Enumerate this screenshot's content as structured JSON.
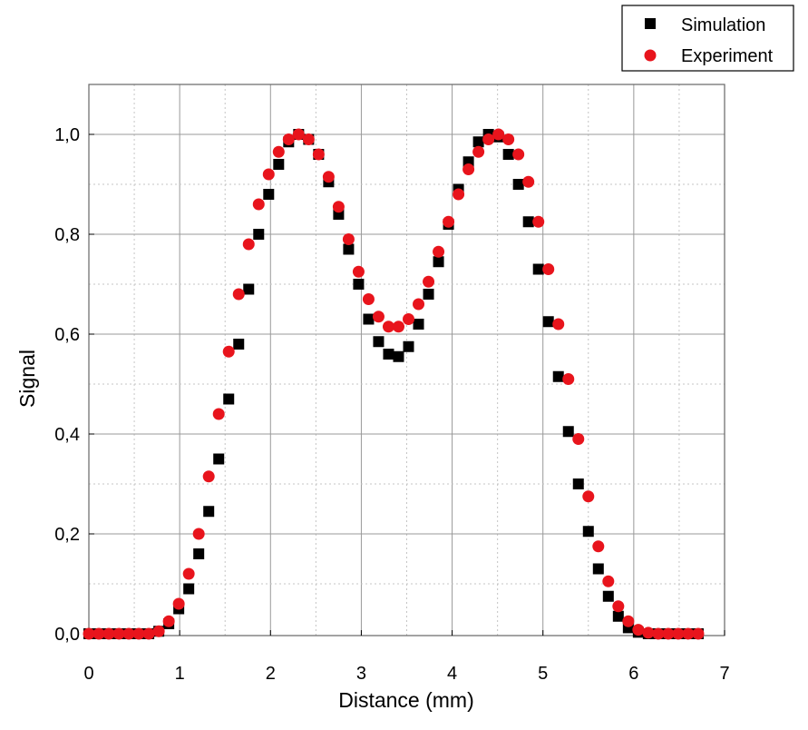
{
  "chart_data": {
    "type": "scatter",
    "xlabel": "Distance (mm)",
    "ylabel": "Signal",
    "xlim": [
      0,
      7
    ],
    "ylim": [
      0,
      1.1
    ],
    "x_ticks": [
      0,
      1,
      2,
      3,
      4,
      5,
      6,
      7
    ],
    "x_tick_labels": [
      "0",
      "1",
      "2",
      "3",
      "4",
      "5",
      "6",
      "7"
    ],
    "y_ticks": [
      0,
      0.2,
      0.4,
      0.6,
      0.8,
      1.0
    ],
    "y_tick_labels": [
      "0,0",
      "0,2",
      "0,4",
      "0,6",
      "0,8",
      "1,0"
    ],
    "grid": "dotted minor and solid major",
    "legend_placement": "top-right, outside plot",
    "series": [
      {
        "name": "Simulation",
        "marker": "square",
        "color": "#000000",
        "x": [
          0.0,
          0.11,
          0.22,
          0.33,
          0.44,
          0.55,
          0.66,
          0.77,
          0.88,
          0.99,
          1.1,
          1.21,
          1.32,
          1.43,
          1.54,
          1.65,
          1.76,
          1.87,
          1.98,
          2.09,
          2.2,
          2.31,
          2.42,
          2.53,
          2.64,
          2.75,
          2.86,
          2.97,
          3.08,
          3.19,
          3.3,
          3.41,
          3.52,
          3.63,
          3.74,
          3.85,
          3.96,
          4.07,
          4.18,
          4.29,
          4.4,
          4.51,
          4.62,
          4.73,
          4.84,
          4.95,
          5.06,
          5.17,
          5.28,
          5.39,
          5.5,
          5.61,
          5.72,
          5.83,
          5.94,
          6.05,
          6.16,
          6.27,
          6.38,
          6.49,
          6.6,
          6.71
        ],
        "y": [
          0.0,
          0.0,
          0.0,
          0.0,
          0.0,
          0.0,
          0.0,
          0.005,
          0.02,
          0.05,
          0.09,
          0.16,
          0.245,
          0.35,
          0.47,
          0.58,
          0.69,
          0.8,
          0.88,
          0.94,
          0.985,
          1.0,
          0.99,
          0.96,
          0.905,
          0.84,
          0.77,
          0.7,
          0.63,
          0.585,
          0.56,
          0.555,
          0.575,
          0.62,
          0.68,
          0.745,
          0.82,
          0.89,
          0.945,
          0.985,
          1.0,
          0.995,
          0.96,
          0.9,
          0.825,
          0.73,
          0.625,
          0.515,
          0.405,
          0.3,
          0.205,
          0.13,
          0.075,
          0.035,
          0.012,
          0.003,
          0.0,
          0.0,
          0.0,
          0.0,
          0.0,
          0.0
        ]
      },
      {
        "name": "Experiment",
        "marker": "circle",
        "color": "#e8141c",
        "x": [
          0.0,
          0.11,
          0.22,
          0.33,
          0.44,
          0.55,
          0.66,
          0.77,
          0.88,
          0.99,
          1.1,
          1.21,
          1.32,
          1.43,
          1.54,
          1.65,
          1.76,
          1.87,
          1.98,
          2.09,
          2.2,
          2.31,
          2.42,
          2.53,
          2.64,
          2.75,
          2.86,
          2.97,
          3.08,
          3.19,
          3.3,
          3.41,
          3.52,
          3.63,
          3.74,
          3.85,
          3.96,
          4.07,
          4.18,
          4.29,
          4.4,
          4.51,
          4.62,
          4.73,
          4.84,
          4.95,
          5.06,
          5.17,
          5.28,
          5.39,
          5.5,
          5.61,
          5.72,
          5.83,
          5.94,
          6.05,
          6.16,
          6.27,
          6.38,
          6.49,
          6.6,
          6.71
        ],
        "y": [
          0.0,
          0.0,
          0.0,
          0.0,
          0.0,
          0.0,
          0.0,
          0.005,
          0.025,
          0.06,
          0.12,
          0.2,
          0.315,
          0.44,
          0.565,
          0.68,
          0.78,
          0.86,
          0.92,
          0.965,
          0.99,
          1.0,
          0.99,
          0.96,
          0.915,
          0.855,
          0.79,
          0.725,
          0.67,
          0.635,
          0.615,
          0.615,
          0.63,
          0.66,
          0.705,
          0.765,
          0.825,
          0.88,
          0.93,
          0.965,
          0.99,
          1.0,
          0.99,
          0.96,
          0.905,
          0.825,
          0.73,
          0.62,
          0.51,
          0.39,
          0.275,
          0.175,
          0.105,
          0.055,
          0.025,
          0.008,
          0.002,
          0.0,
          0.0,
          0.0,
          0.0,
          0.0
        ]
      }
    ]
  }
}
